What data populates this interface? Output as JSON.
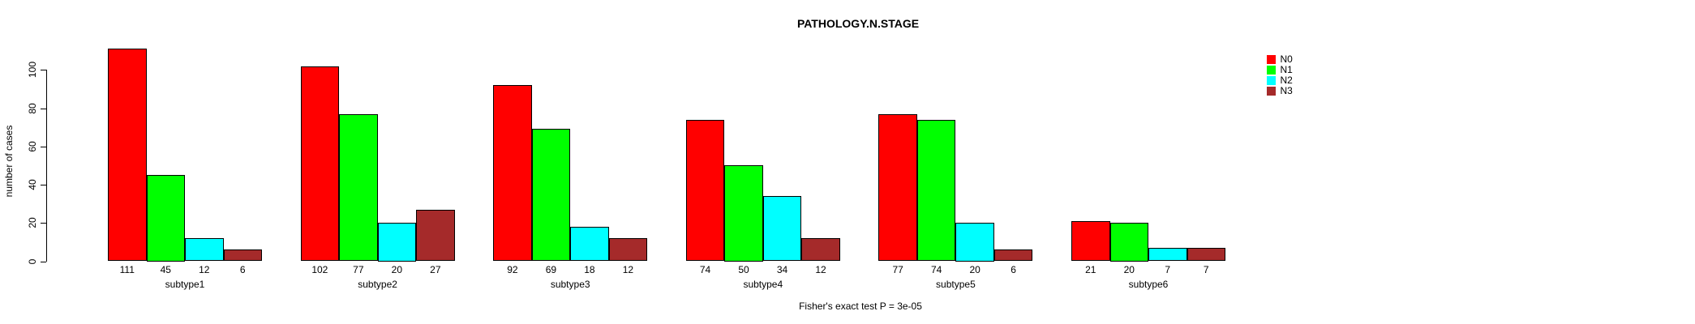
{
  "chart_data": {
    "type": "bar",
    "title": "PATHOLOGY.N.STAGE",
    "ylabel": "number of cases",
    "xlabel": "",
    "footer": "Fisher's exact test P = 3e-05",
    "categories": [
      "subtype1",
      "subtype2",
      "subtype3",
      "subtype4",
      "subtype5",
      "subtype6"
    ],
    "series": [
      {
        "name": "N0",
        "color": "#FF0000",
        "values": [
          111,
          102,
          92,
          74,
          77,
          21
        ]
      },
      {
        "name": "N1",
        "color": "#00FF00",
        "values": [
          45,
          77,
          69,
          50,
          74,
          20
        ]
      },
      {
        "name": "N2",
        "color": "#00FFFF",
        "values": [
          12,
          20,
          18,
          34,
          20,
          7
        ]
      },
      {
        "name": "N3",
        "color": "#A52A2A",
        "values": [
          6,
          27,
          12,
          12,
          6,
          7
        ]
      }
    ],
    "yticks": [
      0,
      20,
      40,
      60,
      80,
      100
    ],
    "ylim": [
      0,
      117
    ],
    "grid": false,
    "legend_position": "top-right",
    "bar_border_color": "#000000",
    "value_labels_shown": true
  }
}
